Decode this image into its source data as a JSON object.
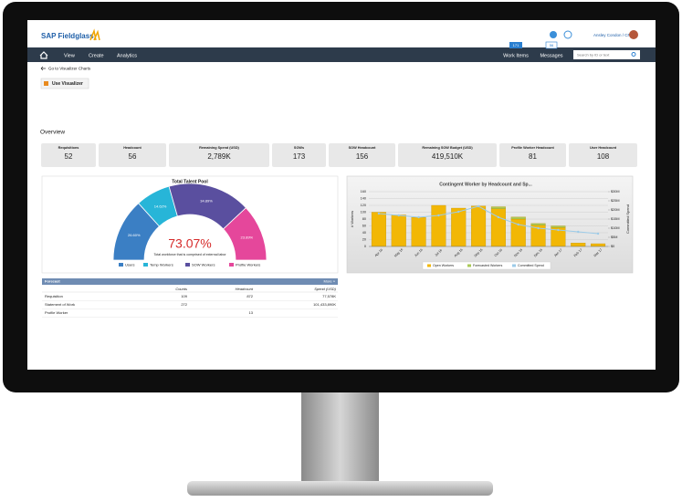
{
  "header": {
    "logo": "SAP Fieldglass",
    "user": "Ansley Condon / CRFA"
  },
  "nav": {
    "items": [
      "View",
      "Create",
      "Analytics"
    ],
    "work_items": {
      "label": "Work Items",
      "count": 171
    },
    "messages": {
      "label": "Messages",
      "count": 56
    },
    "search_placeholder": "Search by ID or text"
  },
  "back_link": "Go to Visualizer Charts",
  "button": "Use Visualizer",
  "section_title": "Overview",
  "kpis": [
    {
      "label": "Requisitions",
      "value": "52"
    },
    {
      "label": "Headcount",
      "value": "56"
    },
    {
      "label": "Remaining Spend (USD)",
      "value": "2,789K"
    },
    {
      "label": "SOWs",
      "value": "173"
    },
    {
      "label": "SOW Headcount",
      "value": "156"
    },
    {
      "label": "Remaining SOW Budget (USD)",
      "value": "419,510K"
    },
    {
      "label": "Profile Worker Headcount",
      "value": "81"
    },
    {
      "label": "User Headcount",
      "value": "108"
    }
  ],
  "talent_pool": {
    "title": "Total Talent Pool",
    "center_value": "73.07%",
    "caption": "Total workforce that is comprised of external labor",
    "categories": [
      "Users",
      "Temp Workers",
      "SOW Workers",
      "Profile Workers"
    ],
    "colors": [
      "#3b7fc4",
      "#27b5d8",
      "#5a4f9f",
      "#e5479b"
    ],
    "values": [
      26.6,
      14.62,
      34.89,
      23.89
    ],
    "value_labels": [
      "26.60%",
      "14.62%",
      "34.89%",
      "23.89%"
    ]
  },
  "forecast": {
    "title": "Forecast",
    "more": "More »",
    "columns": [
      "Counts",
      "Headcount",
      "Spend (USD)"
    ],
    "rows": [
      [
        "Requisition",
        "109",
        "872",
        "77,578K"
      ],
      [
        "Statement of Work",
        "272",
        null,
        "101,433,890K"
      ],
      [
        "Profile Worker",
        null,
        "13",
        null
      ]
    ]
  },
  "workers_chart": {
    "type": "bar",
    "title": "Contingent Worker by Headcount and Sp...",
    "y_label": "# Workers",
    "y2_label": "Committed Spend",
    "categories": [
      "Apr 16",
      "May 16",
      "Jun 16",
      "Jul 16",
      "Aug 16",
      "Sep 16",
      "Oct 16",
      "Nov 16",
      "Dec 16",
      "Jan 17",
      "Feb 17",
      "Mar 17"
    ],
    "series": [
      {
        "name": "Open Workers",
        "color": "#f2b705",
        "values": [
          100,
          92,
          85,
          120,
          112,
          118,
          110,
          80,
          62,
          55,
          10,
          8
        ]
      },
      {
        "name": "Forecasted Workers",
        "color": "#a9c957",
        "values": [
          0,
          0,
          0,
          0,
          0,
          0,
          6,
          6,
          5,
          5,
          0,
          0
        ]
      },
      {
        "name": "Committed Spend",
        "color": "#9ccbe8",
        "axis": "y2",
        "values": [
          18,
          17,
          16,
          17,
          19,
          22,
          16,
          12,
          10,
          9,
          8,
          7
        ]
      }
    ],
    "ylim": [
      0,
      160
    ],
    "yticks": [
      0,
      20,
      40,
      60,
      80,
      100,
      120,
      140,
      160
    ],
    "y2lim": [
      0,
      30
    ],
    "y2ticks": [
      {
        "value": 0,
        "label": "$0"
      },
      {
        "value": 5,
        "label": "$5M"
      },
      {
        "value": 10,
        "label": "$10M"
      },
      {
        "value": 15,
        "label": "$15M"
      },
      {
        "value": 20,
        "label": "$20M"
      },
      {
        "value": 25,
        "label": "$25M"
      },
      {
        "value": 30,
        "label": "$30M"
      }
    ],
    "grid": true
  }
}
